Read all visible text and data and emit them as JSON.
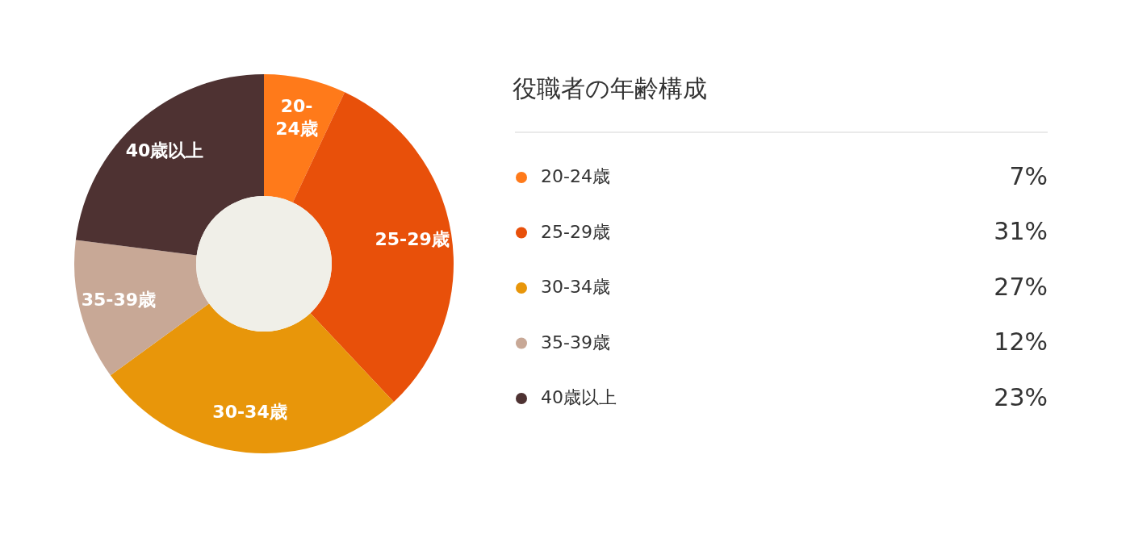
{
  "chart_data": {
    "type": "donut",
    "title": "役職者の年齢構成",
    "categories": [
      "20-24歳",
      "25-29歳",
      "30-34歳",
      "35-39歳",
      "40歳以上"
    ],
    "values": [
      7,
      31,
      27,
      12,
      23
    ],
    "colors": [
      "#ff7a1a",
      "#e8500a",
      "#e8960a",
      "#c8a896",
      "#4e3232"
    ],
    "value_labels": [
      "7%",
      "31%",
      "27%",
      "12%",
      "23%"
    ],
    "legend": "right"
  }
}
